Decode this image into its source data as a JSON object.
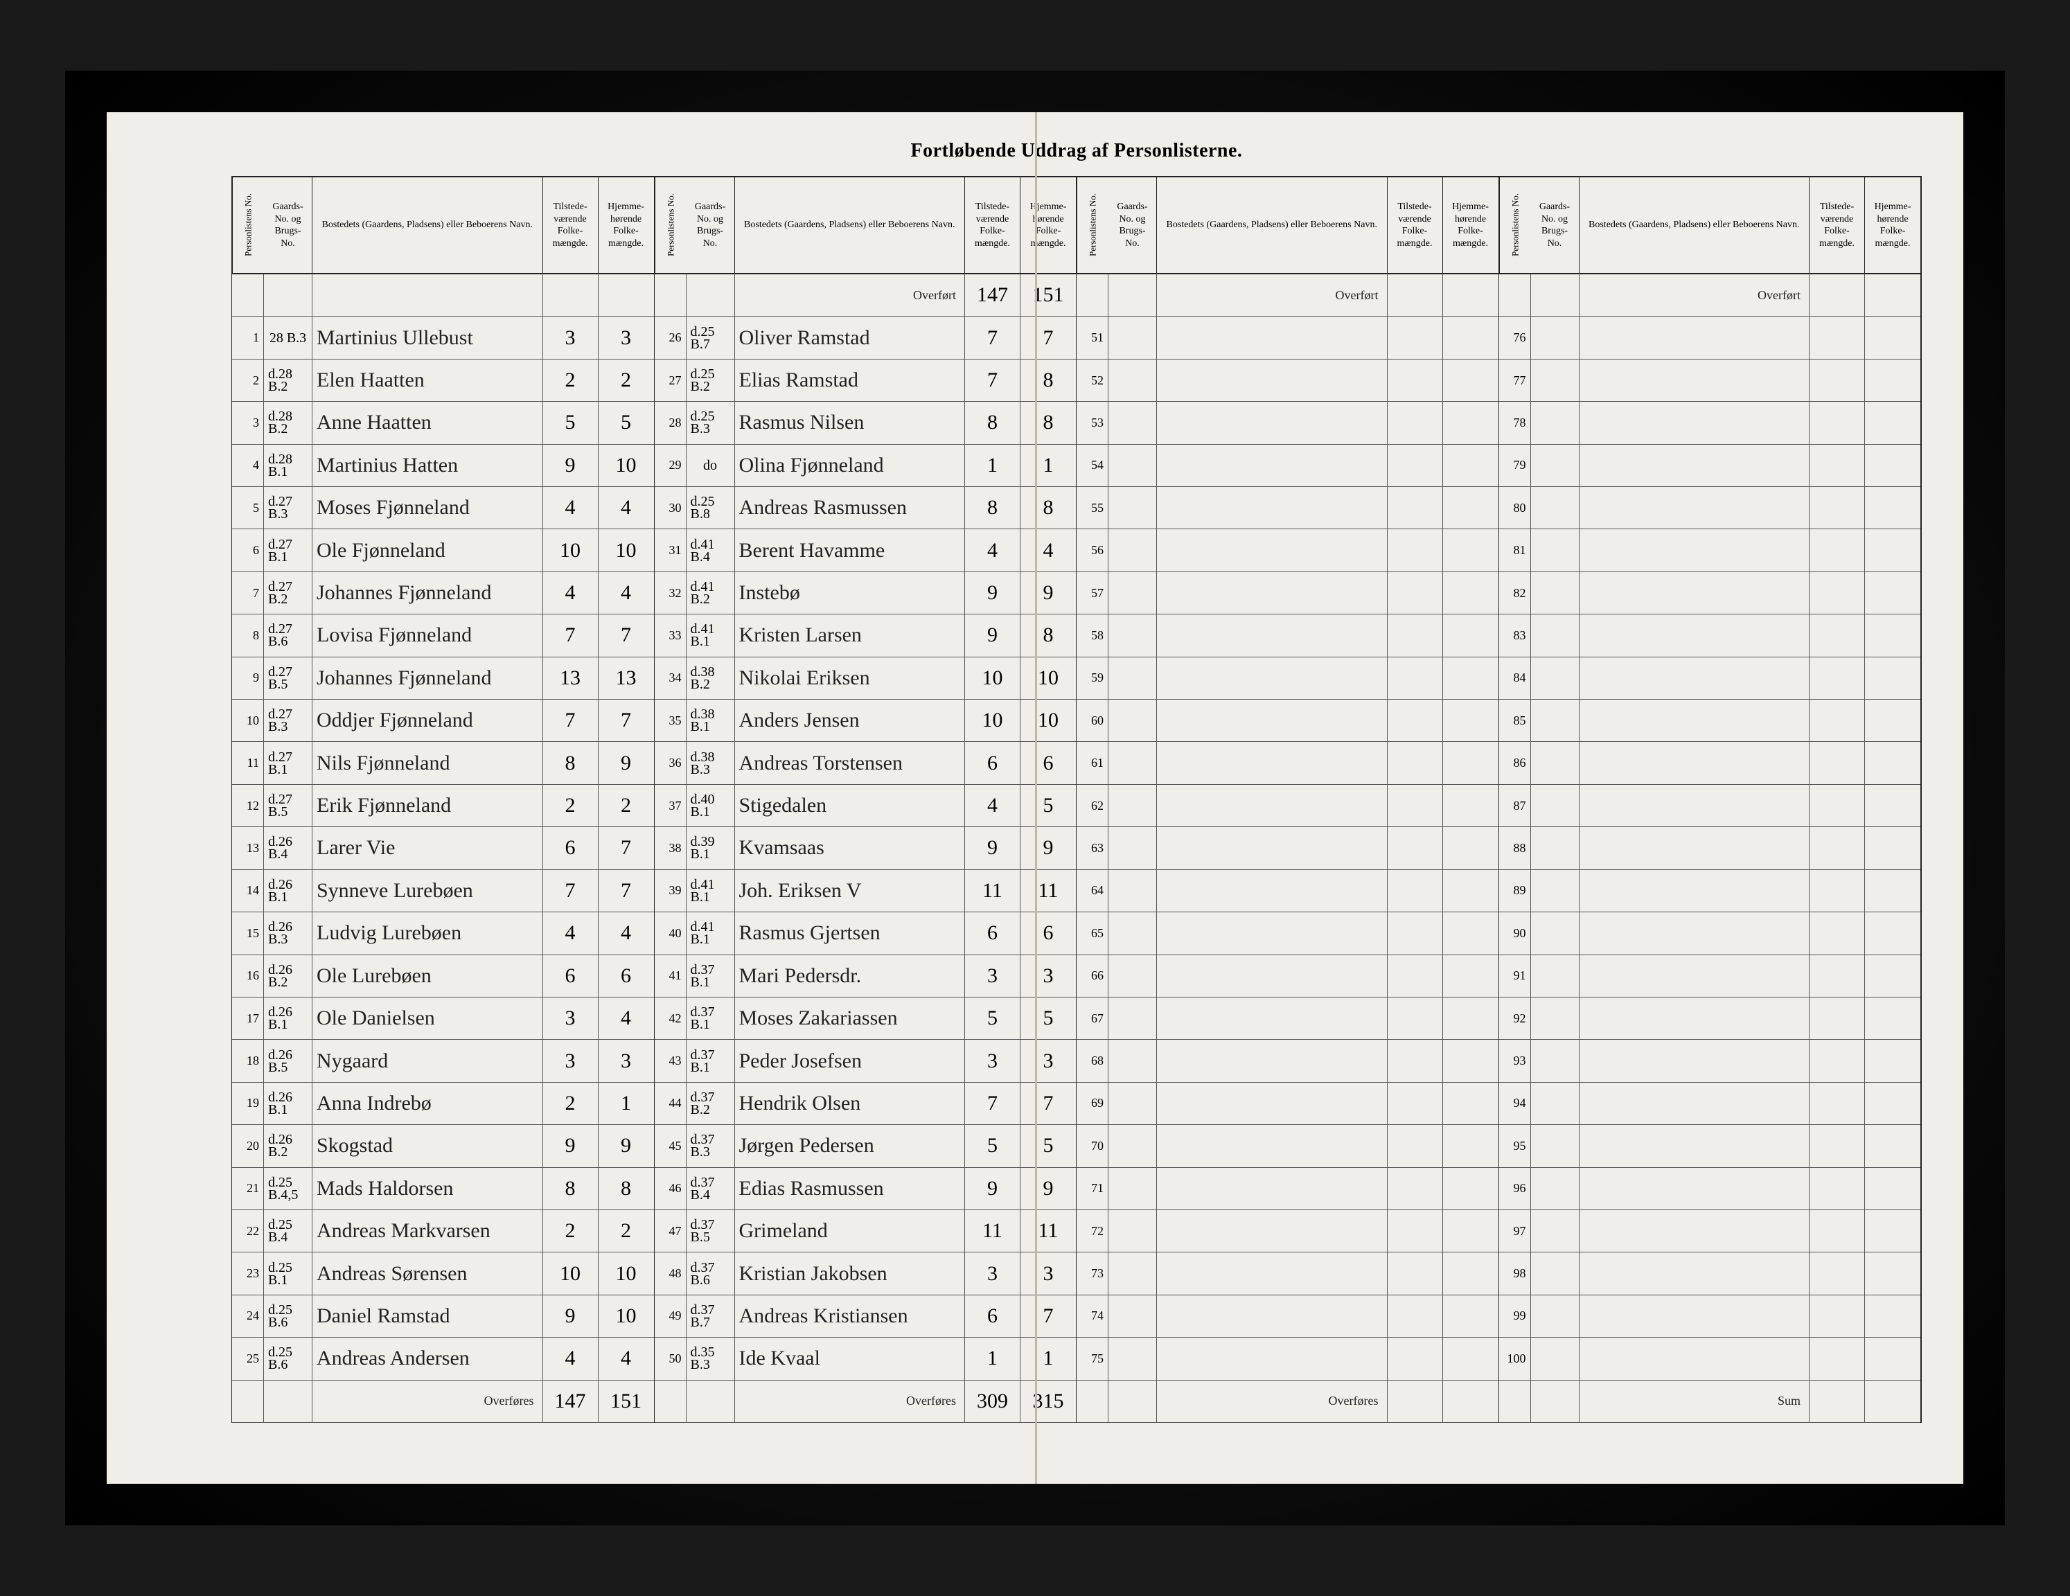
{
  "title": "Fortløbende Uddrag af Personlisterne.",
  "headers": {
    "personliste": "Personlistens No.",
    "gaards": "Gaards-\nNo.\nog\nBrugs-\nNo.",
    "bosted": "Bostedets (Gaardens, Pladsens) eller\nBeboerens Navn.",
    "tilstede": "Tilstede-\nværende\nFolke-\nmængde.",
    "hjemme": "Hjemme-\nhørende\nFolke-\nmængde."
  },
  "labels": {
    "overfort": "Overført",
    "overfores": "Overføres",
    "sum": "Sum"
  },
  "block1": {
    "rows": [
      {
        "no": "1",
        "g": "28\nB.3",
        "name": "Martinius Ullebust",
        "t": "3",
        "h": "3"
      },
      {
        "no": "2",
        "g": "d.28\nB.2",
        "name": "Elen Haatten",
        "t": "2",
        "h": "2"
      },
      {
        "no": "3",
        "g": "d.28\nB.2",
        "name": "Anne Haatten",
        "t": "5",
        "h": "5"
      },
      {
        "no": "4",
        "g": "d.28\nB.1",
        "name": "Martinius Hatten",
        "t": "9",
        "h": "10"
      },
      {
        "no": "5",
        "g": "d.27\nB.3",
        "name": "Moses Fjønneland",
        "t": "4",
        "h": "4"
      },
      {
        "no": "6",
        "g": "d.27\nB.1",
        "name": "Ole Fjønneland",
        "t": "10",
        "h": "10"
      },
      {
        "no": "7",
        "g": "d.27\nB.2",
        "name": "Johannes Fjønneland",
        "t": "4",
        "h": "4"
      },
      {
        "no": "8",
        "g": "d.27\nB.6",
        "name": "Lovisa Fjønneland",
        "t": "7",
        "h": "7"
      },
      {
        "no": "9",
        "g": "d.27\nB.5",
        "name": "Johannes Fjønneland",
        "t": "13",
        "h": "13"
      },
      {
        "no": "10",
        "g": "d.27\nB.3",
        "name": "Oddjer Fjønneland",
        "t": "7",
        "h": "7"
      },
      {
        "no": "11",
        "g": "d.27\nB.1",
        "name": "Nils Fjønneland",
        "t": "8",
        "h": "9"
      },
      {
        "no": "12",
        "g": "d.27\nB.5",
        "name": "Erik Fjønneland",
        "t": "2",
        "h": "2"
      },
      {
        "no": "13",
        "g": "d.26\nB.4",
        "name": "Larer Vie",
        "t": "6",
        "h": "7"
      },
      {
        "no": "14",
        "g": "d.26\nB.1",
        "name": "Synneve Lurebøen",
        "t": "7",
        "h": "7"
      },
      {
        "no": "15",
        "g": "d.26\nB.3",
        "name": "Ludvig Lurebøen",
        "t": "4",
        "h": "4"
      },
      {
        "no": "16",
        "g": "d.26\nB.2",
        "name": "Ole Lurebøen",
        "t": "6",
        "h": "6"
      },
      {
        "no": "17",
        "g": "d.26\nB.1",
        "name": "Ole Danielsen",
        "t": "3",
        "h": "4"
      },
      {
        "no": "18",
        "g": "d.26\nB.5",
        "name": "Nygaard",
        "t": "3",
        "h": "3"
      },
      {
        "no": "19",
        "g": "d.26\nB.1",
        "name": "Anna Indrebø",
        "t": "2",
        "h": "1"
      },
      {
        "no": "20",
        "g": "d.26\nB.2",
        "name": "Skogstad",
        "t": "9",
        "h": "9"
      },
      {
        "no": "21",
        "g": "d.25\nB.4,5",
        "name": "Mads Haldorsen",
        "t": "8",
        "h": "8"
      },
      {
        "no": "22",
        "g": "d.25\nB.4",
        "name": "Andreas Markvarsen",
        "t": "2",
        "h": "2"
      },
      {
        "no": "23",
        "g": "d.25\nB.1",
        "name": "Andreas Sørensen",
        "t": "10",
        "h": "10"
      },
      {
        "no": "24",
        "g": "d.25\nB.6",
        "name": "Daniel Ramstad",
        "t": "9",
        "h": "10"
      },
      {
        "no": "25",
        "g": "d.25\nB.6",
        "name": "Andreas Andersen",
        "t": "4",
        "h": "4"
      }
    ],
    "footer": {
      "label": "Overføres",
      "t": "147",
      "h": "151"
    }
  },
  "block2": {
    "topcarry": {
      "label": "Overført",
      "t": "147",
      "h": "151"
    },
    "rows": [
      {
        "no": "26",
        "g": "d.25\nB.7",
        "name": "Oliver Ramstad",
        "t": "7",
        "h": "7"
      },
      {
        "no": "27",
        "g": "d.25\nB.2",
        "name": "Elias Ramstad",
        "t": "7",
        "h": "8"
      },
      {
        "no": "28",
        "g": "d.25\nB.3",
        "name": "Rasmus Nilsen",
        "t": "8",
        "h": "8"
      },
      {
        "no": "29",
        "g": "do",
        "name": "Olina Fjønneland",
        "t": "1",
        "h": "1"
      },
      {
        "no": "30",
        "g": "d.25\nB.8",
        "name": "Andreas Rasmussen",
        "t": "8",
        "h": "8"
      },
      {
        "no": "31",
        "g": "d.41\nB.4",
        "name": "Berent Havamme",
        "t": "4",
        "h": "4"
      },
      {
        "no": "32",
        "g": "d.41\nB.2",
        "name": "Instebø",
        "t": "9",
        "h": "9"
      },
      {
        "no": "33",
        "g": "d.41\nB.1",
        "name": "Kristen Larsen",
        "t": "9",
        "h": "8"
      },
      {
        "no": "34",
        "g": "d.38\nB.2",
        "name": "Nikolai Eriksen",
        "t": "10",
        "h": "10"
      },
      {
        "no": "35",
        "g": "d.38\nB.1",
        "name": "Anders Jensen",
        "t": "10",
        "h": "10"
      },
      {
        "no": "36",
        "g": "d.38\nB.3",
        "name": "Andreas Torstensen",
        "t": "6",
        "h": "6"
      },
      {
        "no": "37",
        "g": "d.40\nB.1",
        "name": "Stigedalen",
        "t": "4",
        "h": "5"
      },
      {
        "no": "38",
        "g": "d.39\nB.1",
        "name": "Kvamsaas",
        "t": "9",
        "h": "9"
      },
      {
        "no": "39",
        "g": "d.41\nB.1",
        "name": "Joh. Eriksen    V",
        "t": "11",
        "h": "11"
      },
      {
        "no": "40",
        "g": "d.41\nB.1",
        "name": "Rasmus Gjertsen",
        "t": "6",
        "h": "6"
      },
      {
        "no": "41",
        "g": "d.37\nB.1",
        "name": "Mari Pedersdr.",
        "t": "3",
        "h": "3"
      },
      {
        "no": "42",
        "g": "d.37\nB.1",
        "name": "Moses Zakariassen",
        "t": "5",
        "h": "5"
      },
      {
        "no": "43",
        "g": "d.37\nB.1",
        "name": "Peder Josefsen",
        "t": "3",
        "h": "3"
      },
      {
        "no": "44",
        "g": "d.37\nB.2",
        "name": "Hendrik Olsen",
        "t": "7",
        "h": "7"
      },
      {
        "no": "45",
        "g": "d.37\nB.3",
        "name": "Jørgen Pedersen",
        "t": "5",
        "h": "5"
      },
      {
        "no": "46",
        "g": "d.37\nB.4",
        "name": "Edias Rasmussen",
        "t": "9",
        "h": "9"
      },
      {
        "no": "47",
        "g": "d.37\nB.5",
        "name": "Grimeland",
        "t": "11",
        "h": "11"
      },
      {
        "no": "48",
        "g": "d.37\nB.6",
        "name": "Kristian Jakobsen",
        "t": "3",
        "h": "3"
      },
      {
        "no": "49",
        "g": "d.37\nB.7",
        "name": "Andreas Kristiansen",
        "t": "6",
        "h": "7"
      },
      {
        "no": "50",
        "g": "d.35\nB.3",
        "name": "Ide Kvaal",
        "t": "1",
        "h": "1"
      }
    ],
    "footer": {
      "label": "Overføres",
      "t": "309",
      "h": "315"
    }
  },
  "block3": {
    "topcarry": {
      "label": "Overført",
      "t": "",
      "h": ""
    },
    "rows": [
      {
        "no": "51"
      },
      {
        "no": "52"
      },
      {
        "no": "53"
      },
      {
        "no": "54"
      },
      {
        "no": "55"
      },
      {
        "no": "56"
      },
      {
        "no": "57"
      },
      {
        "no": "58"
      },
      {
        "no": "59"
      },
      {
        "no": "60"
      },
      {
        "no": "61"
      },
      {
        "no": "62"
      },
      {
        "no": "63"
      },
      {
        "no": "64"
      },
      {
        "no": "65"
      },
      {
        "no": "66"
      },
      {
        "no": "67"
      },
      {
        "no": "68"
      },
      {
        "no": "69"
      },
      {
        "no": "70"
      },
      {
        "no": "71"
      },
      {
        "no": "72"
      },
      {
        "no": "73"
      },
      {
        "no": "74"
      },
      {
        "no": "75"
      }
    ],
    "footer": {
      "label": "Overføres",
      "t": "",
      "h": ""
    }
  },
  "block4": {
    "topcarry": {
      "label": "Overført",
      "t": "",
      "h": ""
    },
    "rows": [
      {
        "no": "76"
      },
      {
        "no": "77"
      },
      {
        "no": "78"
      },
      {
        "no": "79"
      },
      {
        "no": "80"
      },
      {
        "no": "81"
      },
      {
        "no": "82"
      },
      {
        "no": "83"
      },
      {
        "no": "84"
      },
      {
        "no": "85"
      },
      {
        "no": "86"
      },
      {
        "no": "87"
      },
      {
        "no": "88"
      },
      {
        "no": "89"
      },
      {
        "no": "90"
      },
      {
        "no": "91"
      },
      {
        "no": "92"
      },
      {
        "no": "93"
      },
      {
        "no": "94"
      },
      {
        "no": "95"
      },
      {
        "no": "96"
      },
      {
        "no": "97"
      },
      {
        "no": "98"
      },
      {
        "no": "99"
      },
      {
        "no": "100"
      }
    ],
    "footer": {
      "label": "Sum",
      "t": "",
      "h": ""
    }
  }
}
